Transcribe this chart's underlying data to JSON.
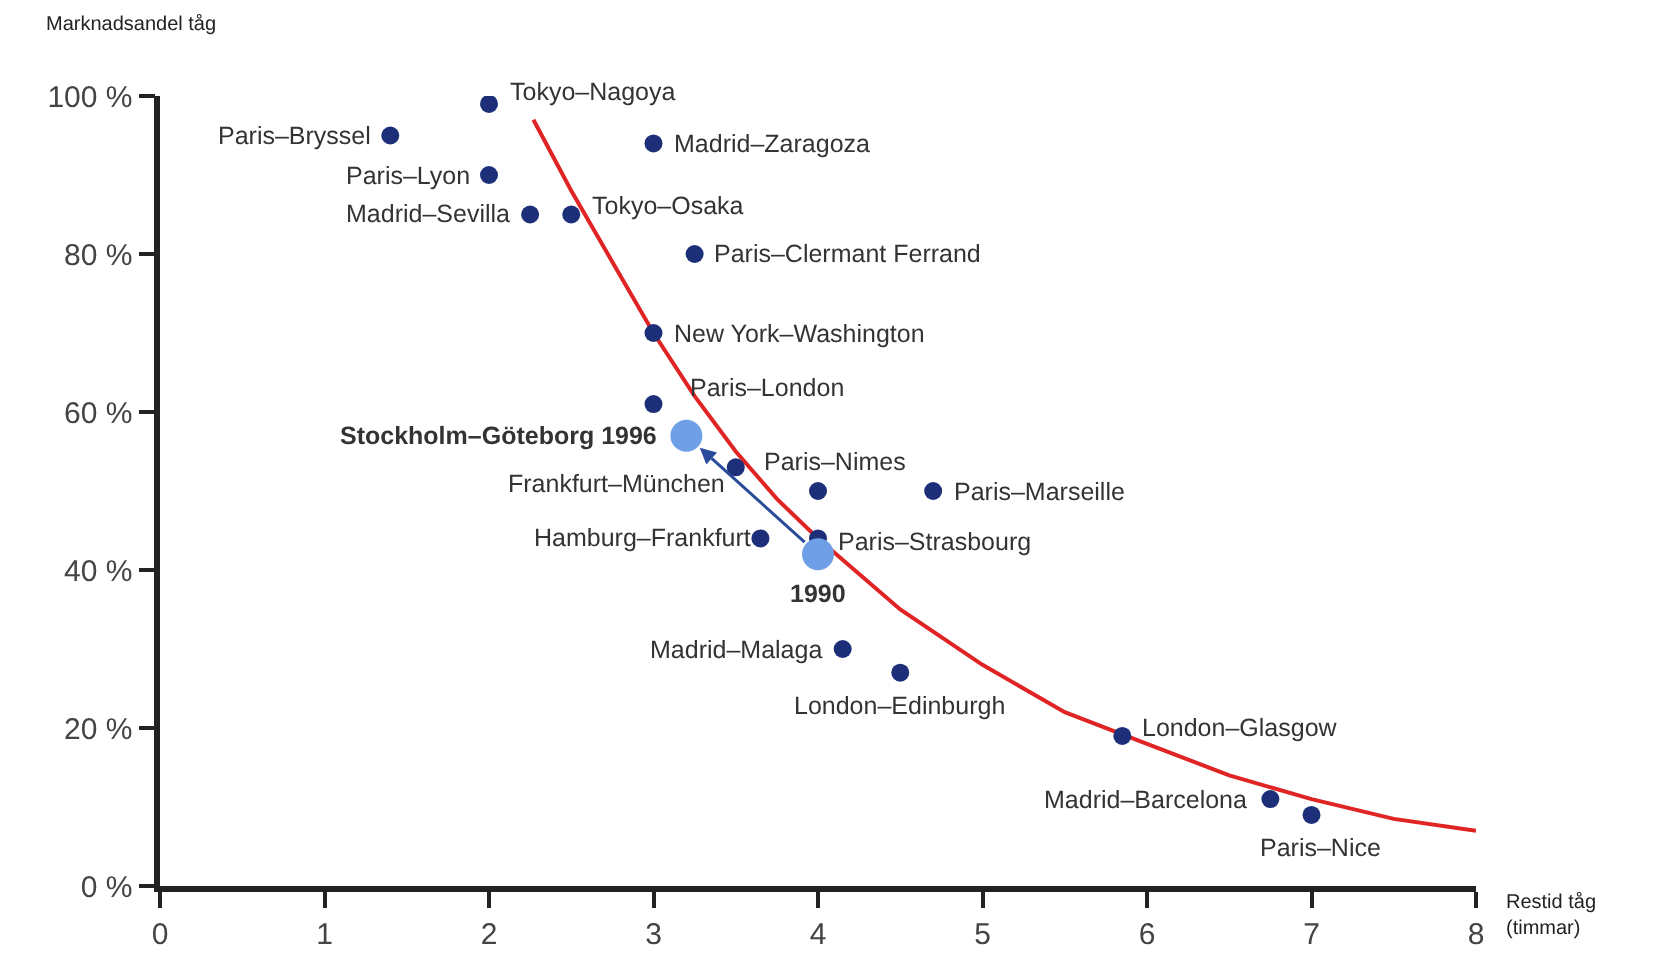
{
  "chart_data": {
    "type": "scatter",
    "xlabel": "Restid tåg (timmar)",
    "ylabel": "Marknadsandel tåg",
    "xlim": [
      0,
      8
    ],
    "xticks": [
      0,
      1,
      2,
      3,
      4,
      5,
      6,
      7,
      8
    ],
    "ylim": [
      0,
      100
    ],
    "yticks": [
      {
        "value": 0,
        "label": "0 %"
      },
      {
        "value": 20,
        "label": "20 %"
      },
      {
        "value": 40,
        "label": "40 %"
      },
      {
        "value": 60,
        "label": "60 %"
      },
      {
        "value": 80,
        "label": "80 %"
      },
      {
        "value": 100,
        "label": "100 %"
      }
    ],
    "grid": false,
    "marker": "circle",
    "series": [
      {
        "type": "line",
        "marker": "none",
        "color": "#e02424",
        "x": [
          2.27,
          2.5,
          2.75,
          3,
          3.25,
          3.5,
          3.75,
          4,
          4.5,
          5,
          5.5,
          6,
          6.5,
          7,
          7.5,
          8
        ],
        "values": [
          97,
          88,
          79,
          70,
          62,
          55,
          49,
          44,
          35,
          28,
          22,
          18,
          14,
          11,
          8.5,
          7
        ]
      },
      {
        "color": "#1c2f78",
        "x": [
          2.0,
          1.4,
          2.0,
          2.25,
          2.5,
          3.0,
          3.25,
          3.0,
          3.0,
          3.5,
          4.0,
          4.7,
          3.65,
          4.0,
          4.15,
          4.5,
          5.85,
          6.75,
          7.0
        ],
        "values": [
          99,
          95,
          90,
          85,
          85,
          94,
          80,
          70,
          61,
          53,
          50,
          50,
          44,
          44,
          30,
          27,
          19,
          11,
          9
        ]
      },
      {
        "color": "#6f9fe6",
        "x": [
          4.0,
          3.2
        ],
        "values": [
          42,
          57
        ]
      }
    ],
    "annotations": [
      {
        "text": "Tokyo–Nagoya",
        "x": 2.0,
        "y": 99
      },
      {
        "text": "Paris–Bryssel",
        "x": 1.4,
        "y": 95
      },
      {
        "text": "Paris–Lyon",
        "x": 2.0,
        "y": 90
      },
      {
        "text": "Madrid–Sevilla",
        "x": 2.25,
        "y": 85
      },
      {
        "text": "Tokyo–Osaka",
        "x": 2.5,
        "y": 85
      },
      {
        "text": "Madrid–Zaragoza",
        "x": 3.0,
        "y": 94
      },
      {
        "text": "Paris–Clermant Ferrand",
        "x": 3.25,
        "y": 80
      },
      {
        "text": "New York–Washington",
        "x": 3.0,
        "y": 70
      },
      {
        "text": "Paris–London",
        "x": 3.0,
        "y": 61
      },
      {
        "text": "Frankfurt–München",
        "x": 3.5,
        "y": 53
      },
      {
        "text": "Paris–Nimes",
        "x": 4.0,
        "y": 50
      },
      {
        "text": "Paris–Marseille",
        "x": 4.7,
        "y": 50
      },
      {
        "text": "Hamburg–Frankfurt",
        "x": 3.65,
        "y": 44
      },
      {
        "text": "Paris–Strasbourg",
        "x": 4.0,
        "y": 44
      },
      {
        "text": "Madrid–Malaga",
        "x": 4.15,
        "y": 30
      },
      {
        "text": "London–Edinburgh",
        "x": 4.5,
        "y": 27
      },
      {
        "text": "London–Glasgow",
        "x": 5.85,
        "y": 19
      },
      {
        "text": "Madrid–Barcelona",
        "x": 6.75,
        "y": 11
      },
      {
        "text": "Paris–Nice",
        "x": 7.0,
        "y": 9
      },
      {
        "text": "Stockholm–Göteborg 1996",
        "x": 3.2,
        "y": 57
      },
      {
        "text": "1990",
        "x": 4.0,
        "y": 42
      }
    ]
  }
}
